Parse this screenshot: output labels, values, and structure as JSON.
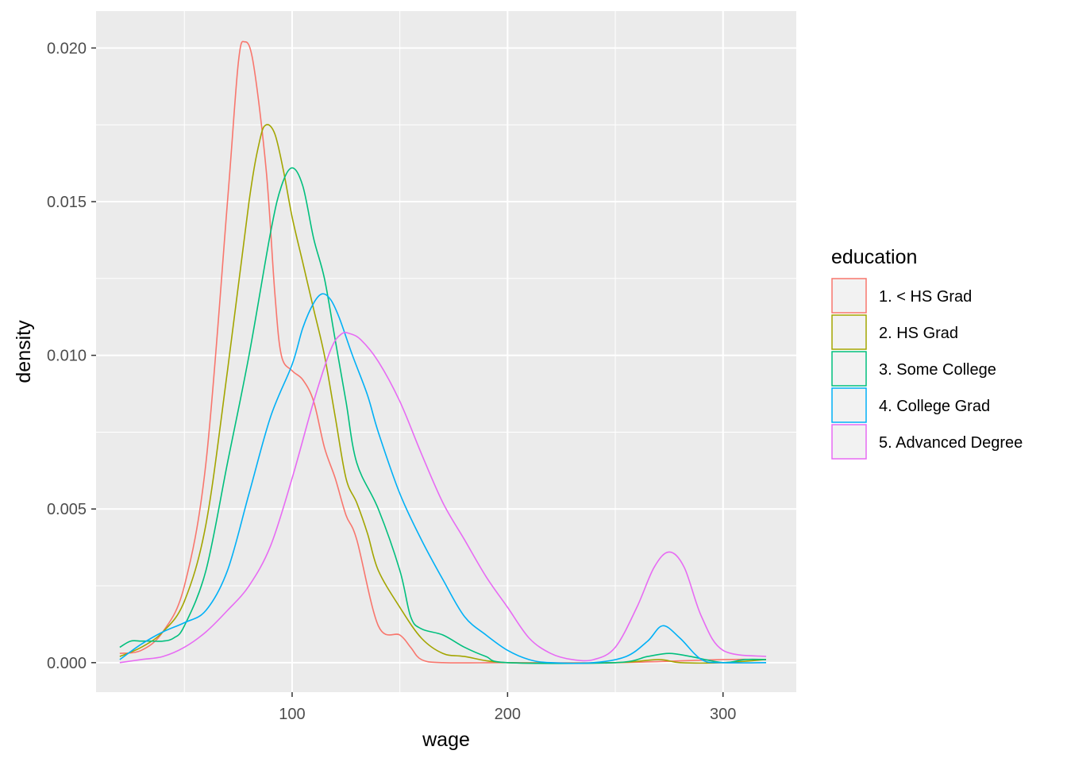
{
  "chart_data": {
    "type": "line",
    "xlabel": "wage",
    "ylabel": "density",
    "xlim": [
      9,
      334
    ],
    "ylim": [
      -0.00096,
      0.0212
    ],
    "x_ticks": [
      100,
      200,
      300
    ],
    "x_tick_labels": [
      "100",
      "200",
      "300"
    ],
    "y_ticks": [
      0.0,
      0.005,
      0.01,
      0.015,
      0.02
    ],
    "y_tick_labels": [
      "0.000",
      "0.005",
      "0.010",
      "0.015",
      "0.020"
    ],
    "grid": true,
    "background": "#EBEBEB",
    "legend": {
      "title": "education",
      "position": "right"
    },
    "series": [
      {
        "name": "1. < HS Grad",
        "color": "#F8766D",
        "x": [
          20,
          30,
          40,
          50,
          60,
          70,
          75,
          78,
          82,
          88,
          92,
          95,
          100,
          105,
          110,
          115,
          120,
          125,
          130,
          140,
          150,
          155,
          160,
          170,
          200,
          250,
          300,
          320
        ],
        "y": [
          0.0003,
          0.0004,
          0.001,
          0.0025,
          0.0065,
          0.015,
          0.0195,
          0.0202,
          0.0195,
          0.016,
          0.012,
          0.01,
          0.0095,
          0.0092,
          0.0085,
          0.007,
          0.006,
          0.0048,
          0.004,
          0.0012,
          0.0009,
          0.0005,
          0.0001,
          0.0,
          0.0,
          0.0,
          0.0001,
          0.0001
        ]
      },
      {
        "name": "2. HS Grad",
        "color": "#A3A500",
        "x": [
          20,
          30,
          40,
          50,
          60,
          70,
          80,
          85,
          88,
          92,
          96,
          100,
          105,
          110,
          115,
          120,
          125,
          130,
          135,
          140,
          150,
          160,
          170,
          180,
          200,
          250,
          270,
          280,
          300,
          320
        ],
        "y": [
          0.0002,
          0.0005,
          0.001,
          0.002,
          0.0045,
          0.0095,
          0.015,
          0.017,
          0.0175,
          0.0172,
          0.016,
          0.0145,
          0.013,
          0.0115,
          0.01,
          0.008,
          0.006,
          0.0052,
          0.0042,
          0.003,
          0.0018,
          0.0008,
          0.0003,
          0.0002,
          0.0,
          0.0,
          0.0001,
          0.0,
          0.0,
          0.0001
        ]
      },
      {
        "name": "3. Some College",
        "color": "#00BF7D",
        "x": [
          20,
          25,
          30,
          35,
          40,
          45,
          50,
          60,
          70,
          80,
          90,
          95,
          100,
          105,
          110,
          115,
          120,
          125,
          130,
          140,
          150,
          155,
          160,
          170,
          180,
          190,
          200,
          250,
          265,
          275,
          285,
          300,
          310,
          320
        ],
        "y": [
          0.0005,
          0.0007,
          0.0007,
          0.0007,
          0.0007,
          0.0008,
          0.0012,
          0.003,
          0.0065,
          0.01,
          0.014,
          0.0155,
          0.0161,
          0.0155,
          0.0138,
          0.0125,
          0.0105,
          0.0085,
          0.0065,
          0.005,
          0.003,
          0.0015,
          0.0011,
          0.0009,
          0.0005,
          0.0002,
          0.0,
          0.0,
          0.0002,
          0.0003,
          0.0002,
          0.0,
          0.0001,
          0.0001
        ]
      },
      {
        "name": "4. College Grad",
        "color": "#00B0F6",
        "x": [
          20,
          30,
          40,
          50,
          60,
          70,
          80,
          90,
          100,
          105,
          110,
          114,
          118,
          122,
          128,
          135,
          140,
          150,
          160,
          170,
          180,
          190,
          200,
          210,
          220,
          240,
          255,
          265,
          272,
          280,
          290,
          300,
          320
        ],
        "y": [
          0.0001,
          0.0006,
          0.001,
          0.0013,
          0.0017,
          0.003,
          0.0055,
          0.008,
          0.0097,
          0.0109,
          0.0117,
          0.012,
          0.0118,
          0.0112,
          0.01,
          0.0087,
          0.0075,
          0.0055,
          0.004,
          0.0027,
          0.0015,
          0.0009,
          0.0004,
          0.0001,
          0.0,
          0.0,
          0.0002,
          0.0007,
          0.0012,
          0.0008,
          0.0001,
          0.0,
          0.0
        ]
      },
      {
        "name": "5. Advanced Degree",
        "color": "#E76BF3",
        "x": [
          20,
          30,
          40,
          50,
          60,
          70,
          80,
          90,
          100,
          110,
          118,
          123,
          127,
          132,
          140,
          150,
          160,
          170,
          180,
          190,
          200,
          210,
          220,
          230,
          240,
          250,
          260,
          268,
          275,
          282,
          290,
          300,
          320
        ],
        "y": [
          0.0,
          0.0001,
          0.0002,
          0.0005,
          0.001,
          0.0017,
          0.0025,
          0.0038,
          0.006,
          0.0085,
          0.0102,
          0.0107,
          0.0107,
          0.0105,
          0.0098,
          0.0085,
          0.0068,
          0.0052,
          0.004,
          0.0028,
          0.0018,
          0.0008,
          0.0003,
          0.0001,
          0.0001,
          0.0005,
          0.0018,
          0.0031,
          0.0036,
          0.0031,
          0.0015,
          0.0004,
          0.0002
        ]
      }
    ]
  }
}
